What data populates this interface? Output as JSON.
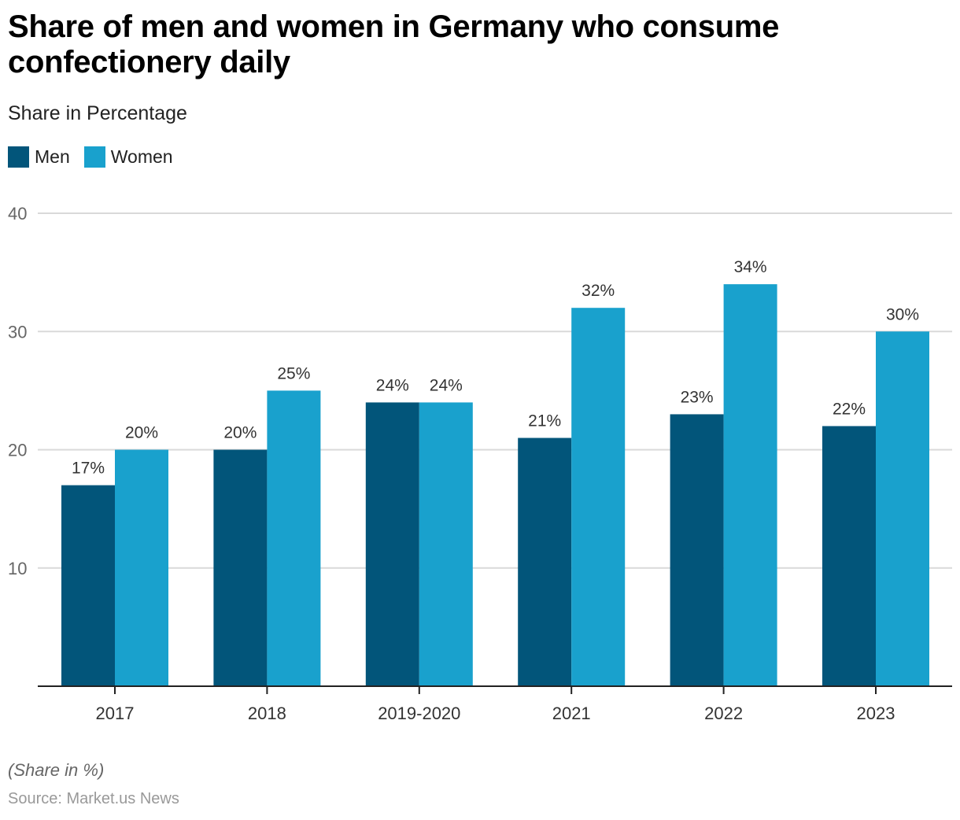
{
  "chart_data": {
    "type": "bar",
    "title": "Share of men and women in Germany who consume confectionery daily",
    "subtitle": "Share in Percentage",
    "xlabel": "",
    "ylabel": "",
    "categories": [
      "2017",
      "2018",
      "2019-2020",
      "2021",
      "2022",
      "2023"
    ],
    "series": [
      {
        "name": "Men",
        "color": "#02557a",
        "values": [
          17,
          20,
          24,
          21,
          23,
          22
        ],
        "labels": [
          "17%",
          "20%",
          "24%",
          "21%",
          "23%",
          "22%"
        ]
      },
      {
        "name": "Women",
        "color": "#19a1cd",
        "values": [
          20,
          25,
          24,
          32,
          34,
          30
        ],
        "labels": [
          "20%",
          "25%",
          "24%",
          "32%",
          "34%",
          "30%"
        ]
      }
    ],
    "ylim": [
      0,
      40
    ],
    "yticks": [
      10,
      20,
      30,
      40
    ],
    "ytick_labels": [
      "10",
      "20",
      "30",
      "40"
    ],
    "grid": true,
    "legend_position": "top-left",
    "note": "(Share in %)",
    "source": "Source: Market.us News"
  }
}
